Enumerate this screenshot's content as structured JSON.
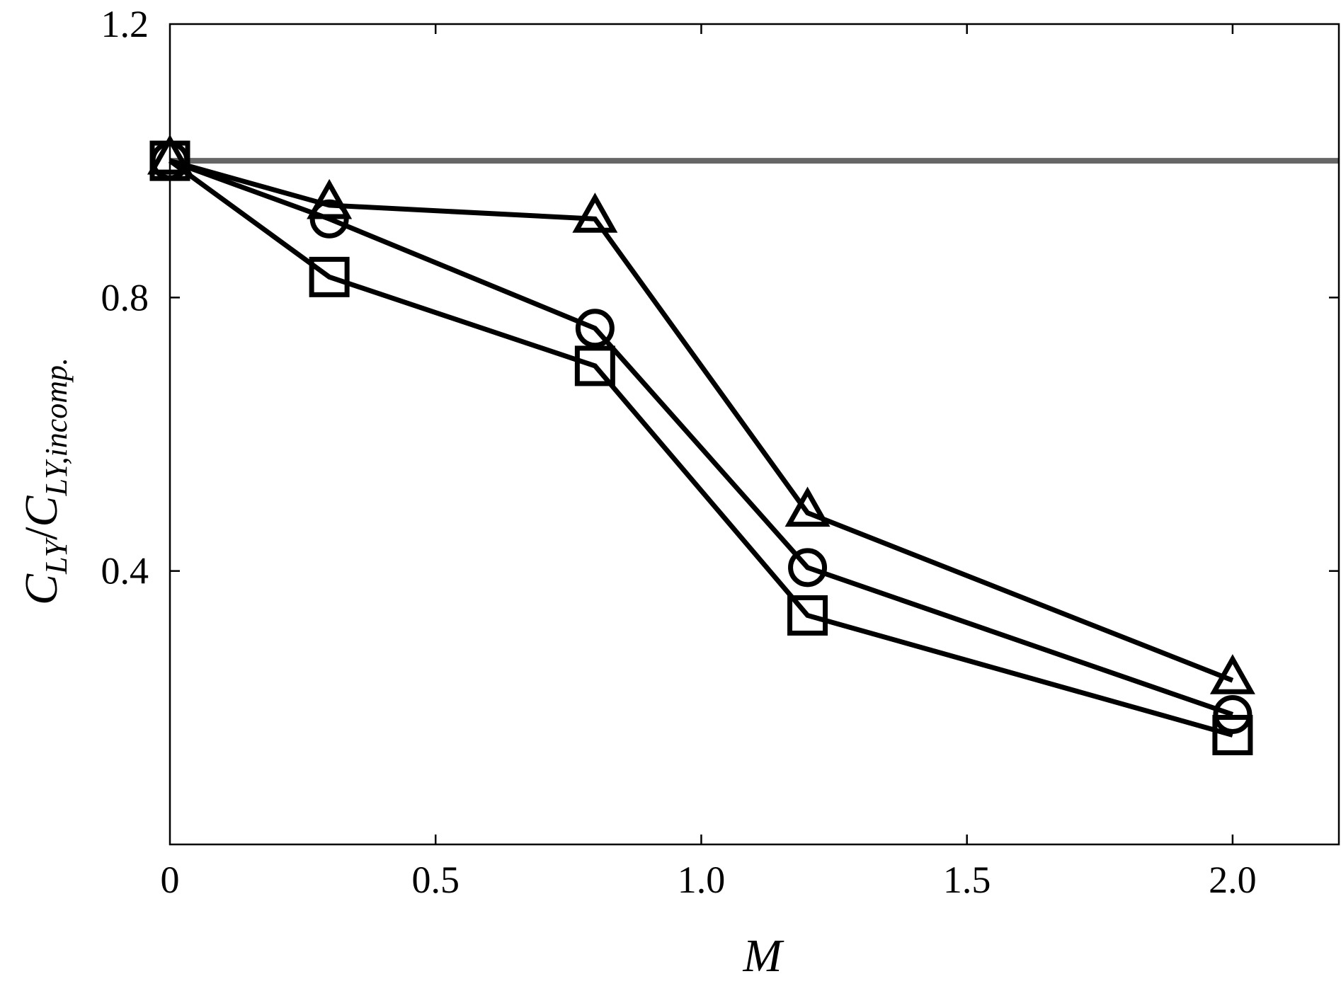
{
  "chart_data": {
    "type": "line",
    "xlabel": "M",
    "ylabel": {
      "base1": "C",
      "sub1": "LY",
      "slash": "/",
      "base2": "C",
      "sub2": "LY,incomp."
    },
    "xlim": [
      0,
      2.2
    ],
    "ylim": [
      0,
      1.2
    ],
    "x_ticks": [
      {
        "value": 0,
        "label": "0"
      },
      {
        "value": 0.5,
        "label": "0.5"
      },
      {
        "value": 1.0,
        "label": "1.0"
      },
      {
        "value": 1.5,
        "label": "1.5"
      },
      {
        "value": 2.0,
        "label": "2.0"
      }
    ],
    "y_ticks": [
      {
        "value": 0.4,
        "label": "0.4"
      },
      {
        "value": 0.8,
        "label": "0.8"
      },
      {
        "value": 1.2,
        "label": "1.2"
      }
    ],
    "reference_line": {
      "y": 1.0,
      "color": "#666666"
    },
    "grid": false,
    "series": [
      {
        "marker": "triangle",
        "color": "#000000",
        "x": [
          0,
          0.3,
          0.8,
          1.2,
          2.0
        ],
        "y": [
          1.0,
          0.935,
          0.915,
          0.485,
          0.24
        ]
      },
      {
        "marker": "circle",
        "color": "#000000",
        "x": [
          0,
          0.3,
          0.8,
          1.2,
          2.0
        ],
        "y": [
          1.0,
          0.915,
          0.755,
          0.405,
          0.19
        ]
      },
      {
        "marker": "square",
        "color": "#000000",
        "x": [
          0,
          0.3,
          0.8,
          1.2,
          2.0
        ],
        "y": [
          1.0,
          0.83,
          0.7,
          0.335,
          0.16
        ]
      }
    ]
  }
}
